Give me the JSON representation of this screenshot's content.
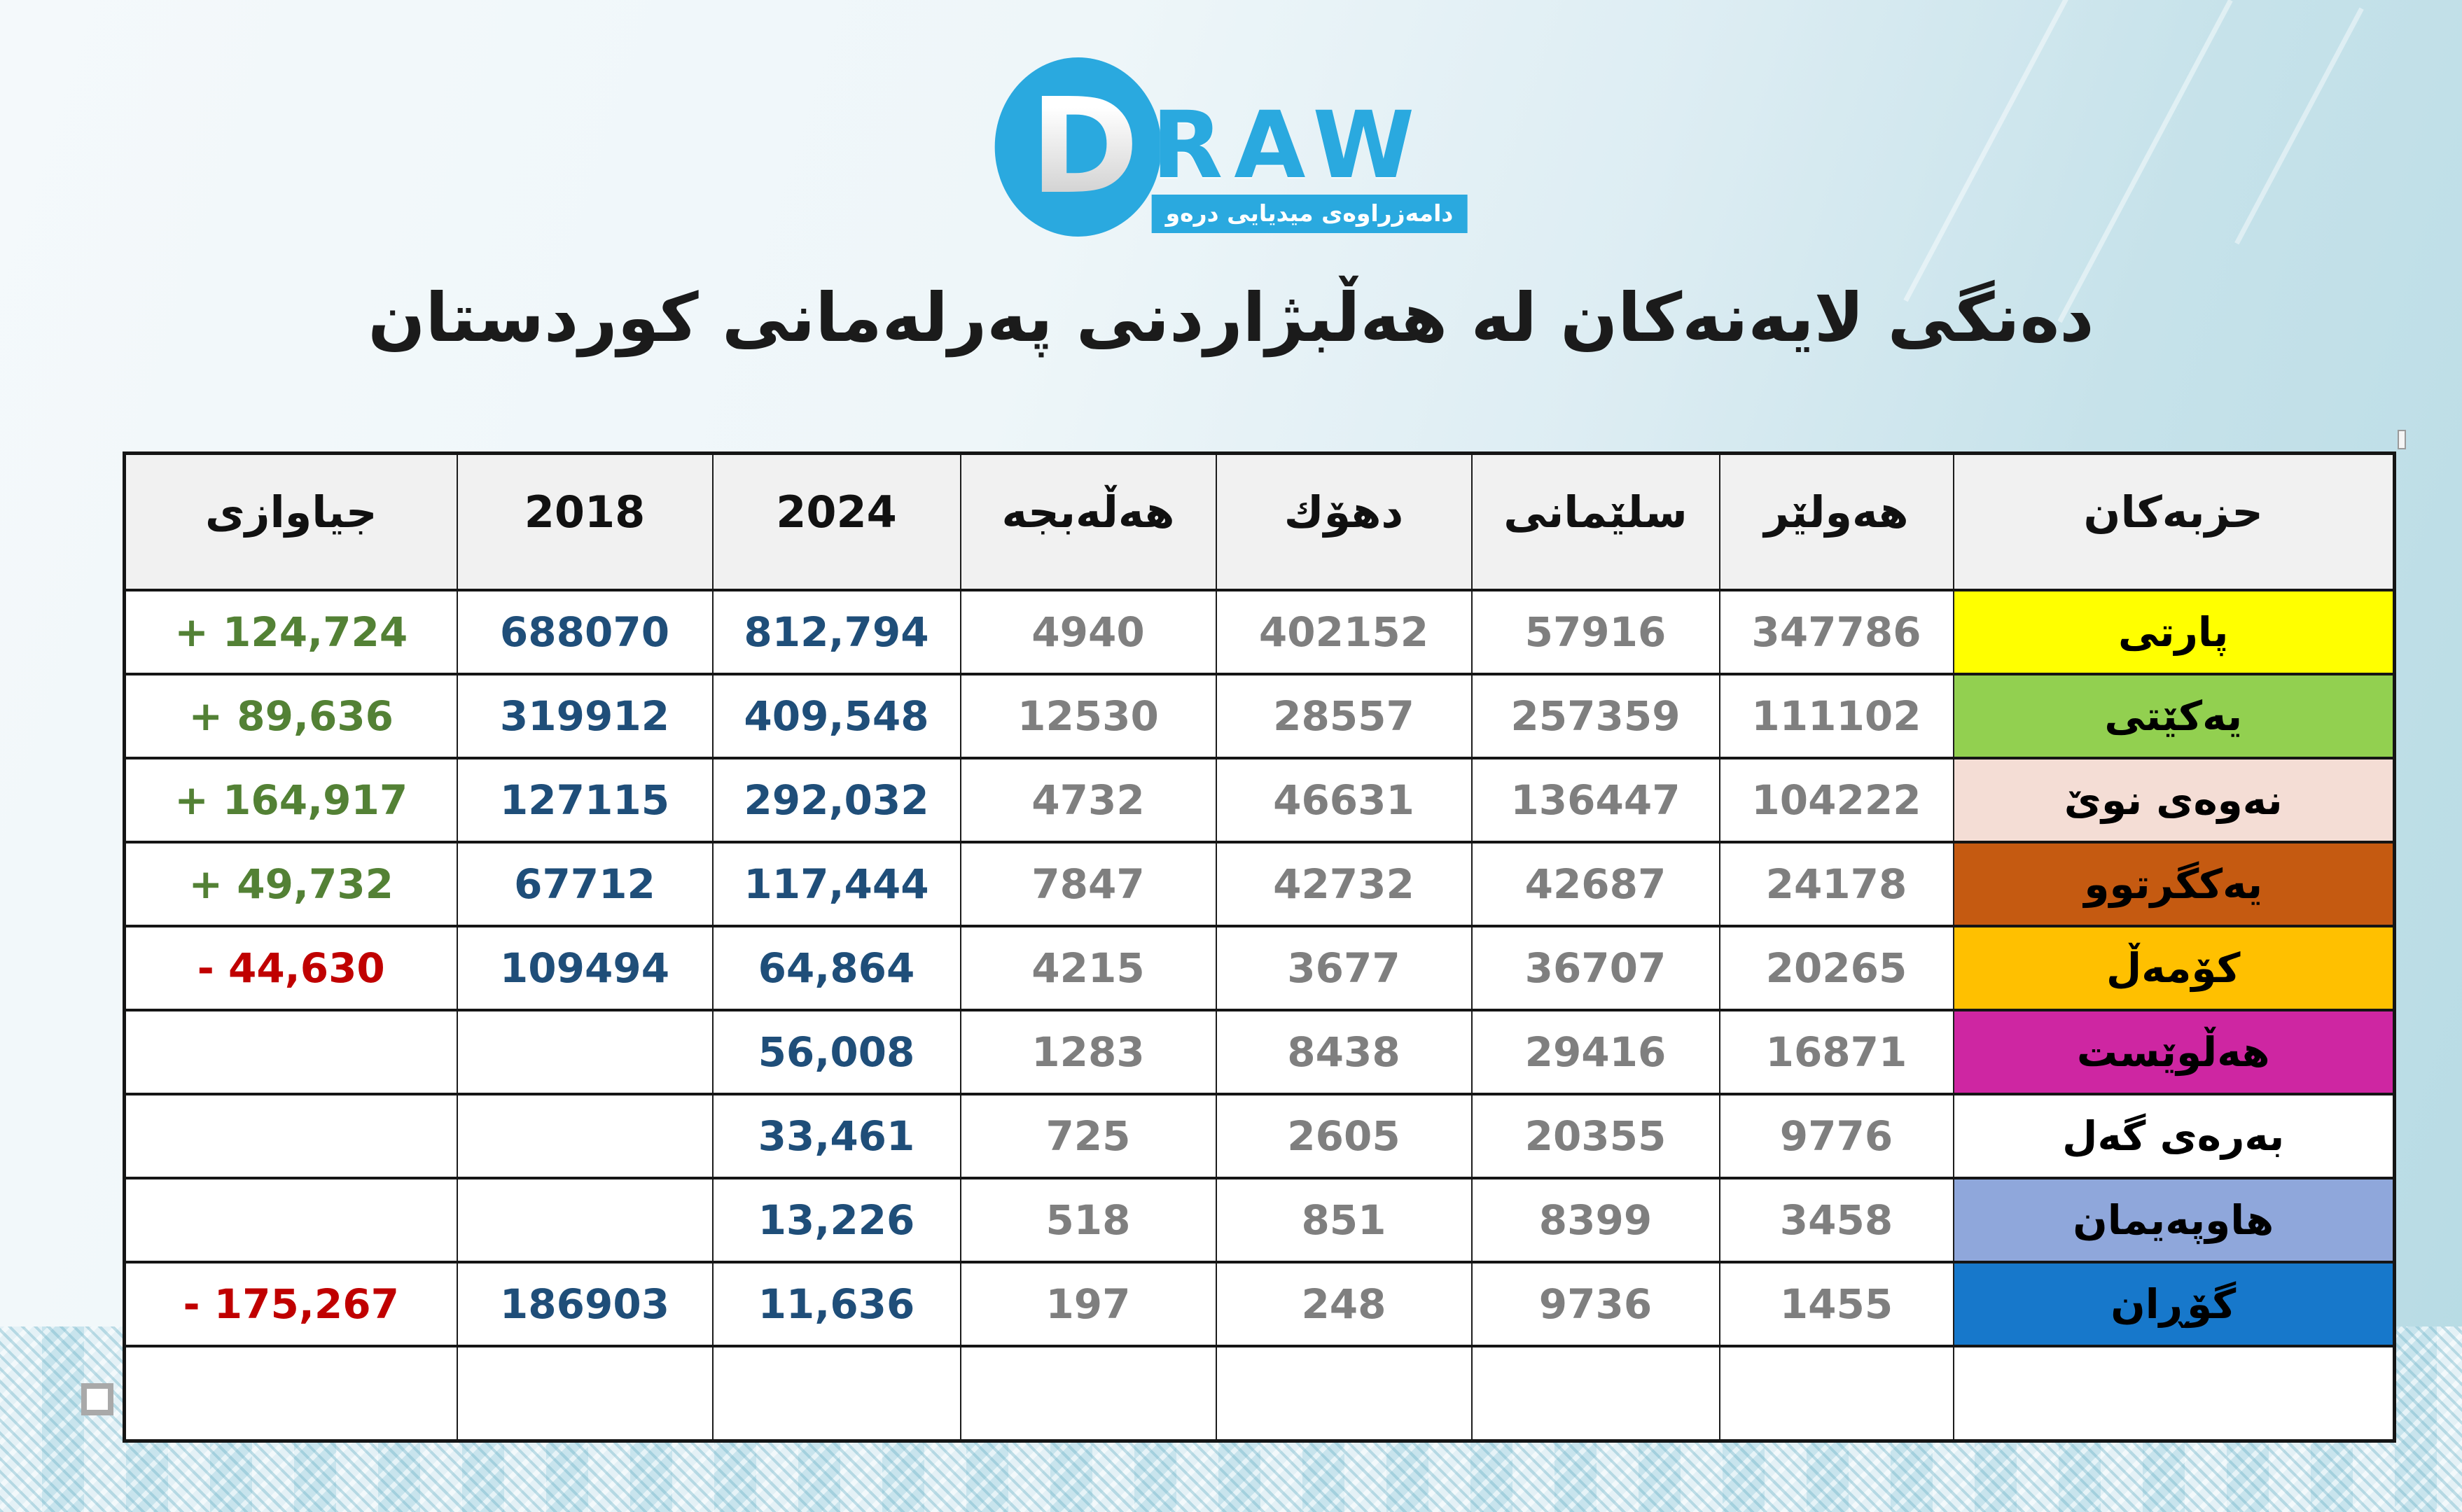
{
  "logo": {
    "d_letter": "D",
    "wordmark": "RAW",
    "tagline": "دامەزراوەی میدیایی درەو",
    "brand_color": "#2aa9df"
  },
  "title": "دەنگی لایەنەکان لە هەڵبژاردنی پەرلەمانی کوردستان",
  "table": {
    "headers": {
      "diff": "جیاوازی",
      "y2018": "2018",
      "y2024": "2024",
      "halabja": "هەڵەبجە",
      "duhok": "دهۆك",
      "sulaymaniyah": "سلێمانی",
      "erbil": "هەولێر",
      "parties": "حزبەکان"
    },
    "rows": [
      {
        "party": "پارتی",
        "color": "#ffff00",
        "erbil": "347786",
        "sulaymaniyah": "57916",
        "duhok": "402152",
        "halabja": "4940",
        "y2024": "812,794",
        "y2018": "688070",
        "diff": "+ 124,724"
      },
      {
        "party": "یەکێتی",
        "color": "#92d050",
        "erbil": "111102",
        "sulaymaniyah": "257359",
        "duhok": "28557",
        "halabja": "12530",
        "y2024": "409,548",
        "y2018": "319912",
        "diff": "+ 89,636"
      },
      {
        "party": "نەوەی نوێ",
        "color": "#f4ddd5",
        "erbil": "104222",
        "sulaymaniyah": "136447",
        "duhok": "46631",
        "halabja": "4732",
        "y2024": "292,032",
        "y2018": "127115",
        "diff": "+ 164,917"
      },
      {
        "party": "یەکگرتوو",
        "color": "#c55a11",
        "erbil": "24178",
        "sulaymaniyah": "42687",
        "duhok": "42732",
        "halabja": "7847",
        "y2024": "117,444",
        "y2018": "67712",
        "diff": "+ 49,732"
      },
      {
        "party": "کۆمەڵ",
        "color": "#ffc000",
        "erbil": "20265",
        "sulaymaniyah": "36707",
        "duhok": "3677",
        "halabja": "4215",
        "y2024": "64,864",
        "y2018": "109494",
        "diff": "- 44,630"
      },
      {
        "party": "هەڵوێست",
        "color": "#ce26a2",
        "erbil": "16871",
        "sulaymaniyah": "29416",
        "duhok": "8438",
        "halabja": "1283",
        "y2024": "56,008",
        "y2018": "",
        "diff": ""
      },
      {
        "party": "بەرەی گەل",
        "color": "#ffffff",
        "erbil": "9776",
        "sulaymaniyah": "20355",
        "duhok": "2605",
        "halabja": "725",
        "y2024": "33,461",
        "y2018": "",
        "diff": ""
      },
      {
        "party": "هاوپەیمان",
        "color": "#8fa7db",
        "erbil": "3458",
        "sulaymaniyah": "8399",
        "duhok": "851",
        "halabja": "518",
        "y2024": "13,226",
        "y2018": "",
        "diff": ""
      },
      {
        "party": "گۆڕان",
        "color": "#1778cb",
        "erbil": "1455",
        "sulaymaniyah": "9736",
        "duhok": "248",
        "halabja": "197",
        "y2024": "11,636",
        "y2018": "186903",
        "diff": "- 175,267"
      },
      {
        "party": "",
        "color": "#ffffff",
        "erbil": "",
        "sulaymaniyah": "",
        "duhok": "",
        "halabja": "",
        "y2024": "",
        "y2018": "",
        "diff": ""
      }
    ]
  }
}
